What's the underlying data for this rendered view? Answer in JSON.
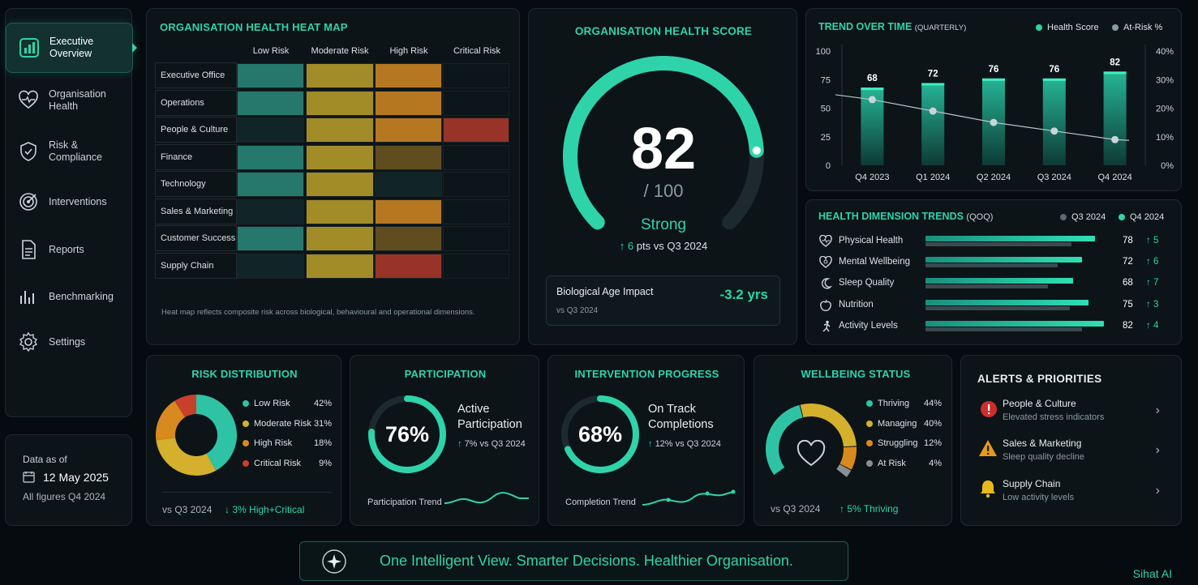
{
  "sidebar": {
    "items": [
      {
        "label": "Executive Overview",
        "icon": "bar-chart-icon"
      },
      {
        "label": "Organisation Health",
        "icon": "heart-pulse-icon"
      },
      {
        "label": "Risk & Compliance",
        "icon": "shield-check-icon"
      },
      {
        "label": "Interventions",
        "icon": "target-icon"
      },
      {
        "label": "Reports",
        "icon": "document-icon"
      },
      {
        "label": "Benchmarking",
        "icon": "bars-icon"
      },
      {
        "label": "Settings",
        "icon": "gear-icon"
      }
    ],
    "active": 0
  },
  "data_as_of": {
    "label": "Data as of",
    "date": "12 May 2025",
    "note": "All figures Q4 2024"
  },
  "heatmap": {
    "title": "ORGANISATION HEALTH HEAT MAP",
    "columns": [
      "Low Risk",
      "Moderate Risk",
      "High Risk",
      "Critical Risk"
    ],
    "rows": [
      {
        "label": "Executive Office",
        "cells": [
          1,
          1,
          1,
          0
        ]
      },
      {
        "label": "Operations",
        "cells": [
          1,
          1,
          1,
          0
        ]
      },
      {
        "label": "People & Culture",
        "cells": [
          0,
          1,
          1,
          1
        ]
      },
      {
        "label": "Finance",
        "cells": [
          1,
          1,
          2,
          0
        ]
      },
      {
        "label": "Technology",
        "cells": [
          1,
          1,
          0,
          0
        ]
      },
      {
        "label": "Sales & Marketing",
        "cells": [
          0,
          1,
          1,
          0
        ]
      },
      {
        "label": "Customer Success",
        "cells": [
          1,
          1,
          2,
          0
        ]
      },
      {
        "label": "Supply Chain",
        "cells": [
          0,
          1,
          3,
          0
        ]
      }
    ],
    "footnote": "Heat map reflects composite risk across biological, behavioural and operational dimensions."
  },
  "score": {
    "title": "ORGANISATION HEALTH SCORE",
    "value": "82",
    "max": "/ 100",
    "fraction": 0.82,
    "status": "Strong",
    "delta_num": "6",
    "delta_text": "pts vs Q3 2024",
    "bio_label": "Biological Age Impact",
    "bio_sub": "vs Q3 2024",
    "bio_value": "-3.2 yrs"
  },
  "chart_data": {
    "type": "bar",
    "title": "TREND OVER TIME",
    "subtitle": "(QUARTERLY)",
    "categories": [
      "Q4 2023",
      "Q1 2024",
      "Q2 2024",
      "Q3 2024",
      "Q4 2024"
    ],
    "series": [
      {
        "name": "Health Score",
        "type": "bar",
        "values": [
          68,
          72,
          76,
          76,
          82
        ]
      },
      {
        "name": "At-Risk %",
        "type": "line",
        "values": [
          23,
          19,
          15,
          12,
          9
        ]
      }
    ],
    "ylim": [
      0,
      100
    ],
    "yticks": [
      "100",
      "75",
      "50",
      "25",
      "0"
    ],
    "y2lim": [
      0,
      40
    ],
    "y2ticks": [
      "40%",
      "30%",
      "20%",
      "10%",
      "0%"
    ],
    "legend_position": "top-right"
  },
  "dimensions": {
    "title": "HEALTH DIMENSION TRENDS",
    "subtitle": "(QOQ)",
    "legend": [
      "Q3 2024",
      "Q4 2024"
    ],
    "items": [
      {
        "label": "Physical Health",
        "icon": "heart-icon",
        "value": "78",
        "delta": "5",
        "cur": 78,
        "prev": 73
      },
      {
        "label": "Mental Wellbeing",
        "icon": "heart-brain-icon",
        "value": "72",
        "delta": "6",
        "cur": 72,
        "prev": 66
      },
      {
        "label": "Sleep Quality",
        "icon": "moon-icon",
        "value": "68",
        "delta": "7",
        "cur": 68,
        "prev": 61
      },
      {
        "label": "Nutrition",
        "icon": "apple-icon",
        "value": "75",
        "delta": "3",
        "cur": 75,
        "prev": 72
      },
      {
        "label": "Activity Levels",
        "icon": "running-icon",
        "value": "82",
        "delta": "4",
        "cur": 82,
        "prev": 78
      }
    ]
  },
  "risk_distribution": {
    "title": "RISK DISTRIBUTION",
    "items": [
      {
        "label": "Low Risk",
        "value": "42%",
        "pct": 42,
        "color": "#2fc3a5"
      },
      {
        "label": "Moderate Risk",
        "value": "31%",
        "pct": 31,
        "color": "#d4b02c"
      },
      {
        "label": "High Risk",
        "value": "18%",
        "pct": 18,
        "color": "#d98a1e"
      },
      {
        "label": "Critical Risk",
        "value": "9%",
        "pct": 9,
        "color": "#c8402b"
      }
    ],
    "footer_left": "vs Q3 2024",
    "footer_right": "3% High+Critical"
  },
  "participation": {
    "title": "PARTICIPATION",
    "value": "76%",
    "fraction": 0.76,
    "label1": "Active",
    "label2": "Participation",
    "delta": "7% vs Q3 2024",
    "trend_label": "Participation Trend"
  },
  "intervention": {
    "title": "INTERVENTION PROGRESS",
    "value": "68%",
    "fraction": 0.68,
    "label1": "On Track",
    "label2": "Completions",
    "delta": "12% vs Q3 2024",
    "trend_label": "Completion Trend"
  },
  "wellbeing": {
    "title": "WELLBEING STATUS",
    "items": [
      {
        "label": "Thriving",
        "value": "44%",
        "pct": 44,
        "color": "#2fc3a5"
      },
      {
        "label": "Managing",
        "value": "40%",
        "pct": 40,
        "color": "#d4b02c"
      },
      {
        "label": "Struggling",
        "value": "12%",
        "pct": 12,
        "color": "#d98a1e"
      },
      {
        "label": "At Risk",
        "value": "4%",
        "pct": 4,
        "color": "#8a8f93"
      }
    ],
    "footer_left": "vs Q3 2024",
    "footer_right": "5% Thriving"
  },
  "alerts": {
    "title": "ALERTS & PRIORITIES",
    "items": [
      {
        "title": "People & Culture",
        "sub": "Elevated stress indicators",
        "icon": "error-circle-icon"
      },
      {
        "title": "Sales & Marketing",
        "sub": "Sleep quality decline",
        "icon": "warning-triangle-icon"
      },
      {
        "title": "Supply Chain",
        "sub": "Low activity levels",
        "icon": "bell-icon"
      }
    ]
  },
  "banner": {
    "text": "One Intelligent View. Smarter Decisions. Healthier Organisation."
  },
  "brand": "Sihat AI",
  "colors": {
    "accent": "#2fd3aa",
    "low": "#2a8a7a",
    "moderate": "#b39a2a",
    "high": "#c98222",
    "critical": "#a8372a"
  }
}
